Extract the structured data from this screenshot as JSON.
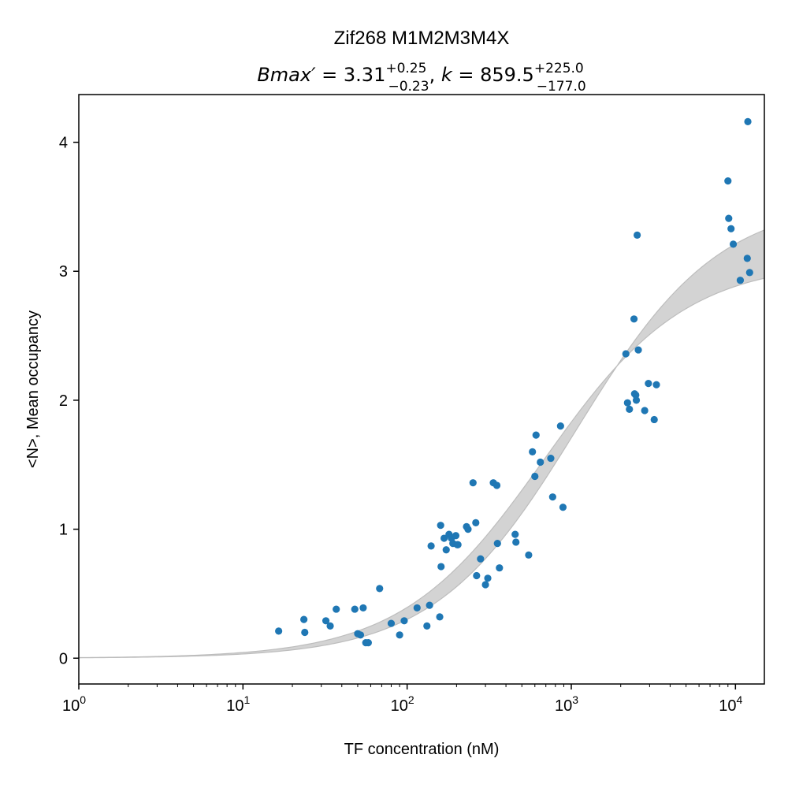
{
  "chart_data": {
    "type": "scatter",
    "title": "Zif268 M1M2M3M4X",
    "subtitle": {
      "bmax_label": "Bmax′",
      "bmax_value": "3.31",
      "bmax_plus": "+0.25",
      "bmax_minus": "−0.23",
      "k_label": "k",
      "k_value": "859.5",
      "k_plus": "+225.0",
      "k_minus": "−177.0"
    },
    "xlabel": "TF concentration (nM)",
    "ylabel": "<N>, Mean occupancy",
    "xscale": "log",
    "xlim": [
      1,
      15000
    ],
    "ylim": [
      -0.2,
      4.37
    ],
    "x_ticks": [
      {
        "value": 1,
        "base": "10",
        "exp": "0"
      },
      {
        "value": 10,
        "base": "10",
        "exp": "1"
      },
      {
        "value": 100,
        "base": "10",
        "exp": "2"
      },
      {
        "value": 1000,
        "base": "10",
        "exp": "3"
      },
      {
        "value": 10000,
        "base": "10",
        "exp": "4"
      }
    ],
    "y_ticks": [
      {
        "value": 0,
        "label": "0"
      },
      {
        "value": 1,
        "label": "1"
      },
      {
        "value": 2,
        "label": "2"
      },
      {
        "value": 3,
        "label": "3"
      },
      {
        "value": 4,
        "label": "4"
      }
    ],
    "grid": false,
    "band": {
      "model": "Bmax*x/(k+x)",
      "color": "#d3d3d3",
      "edge_color": "#bdbdbd",
      "lower": {
        "bmax": 3.08,
        "k": 682.5
      },
      "upper": {
        "bmax": 3.56,
        "k": 1084.5
      }
    },
    "series": [
      {
        "color": "#1f77b4",
        "x": [
          16.5,
          23.5,
          23.8,
          32,
          34,
          37,
          48,
          50,
          52,
          54,
          56,
          58,
          68,
          80,
          90,
          96,
          115,
          132,
          137,
          140,
          158,
          160,
          161,
          168,
          173,
          180,
          186,
          190,
          198,
          202,
          204,
          230,
          235,
          252,
          262,
          265,
          280,
          300,
          310,
          335,
          352,
          355,
          365,
          455,
          460,
          550,
          580,
          600,
          610,
          648,
          750,
          770,
          860,
          890,
          2150,
          2200,
          2260,
          2410,
          2430,
          2470,
          2490,
          2520,
          2560,
          2800,
          2950,
          3200,
          3300,
          9000,
          9100,
          9400,
          9700,
          10700,
          11800,
          11900,
          12200
        ],
        "y": [
          0.21,
          0.3,
          0.2,
          0.29,
          0.25,
          0.38,
          0.38,
          0.19,
          0.18,
          0.39,
          0.12,
          0.12,
          0.54,
          0.27,
          0.18,
          0.29,
          0.39,
          0.25,
          0.41,
          0.87,
          0.32,
          1.03,
          0.71,
          0.93,
          0.84,
          0.96,
          0.93,
          0.89,
          0.95,
          0.88,
          0.88,
          1.02,
          1.0,
          1.36,
          1.05,
          0.64,
          0.77,
          0.57,
          0.62,
          1.36,
          1.34,
          0.89,
          0.7,
          0.96,
          0.9,
          0.8,
          1.6,
          1.41,
          1.73,
          1.52,
          1.55,
          1.25,
          1.8,
          1.17,
          2.36,
          1.98,
          1.93,
          2.63,
          2.05,
          2.04,
          2.0,
          3.28,
          2.39,
          1.92,
          2.13,
          1.85,
          2.12,
          3.7,
          3.41,
          3.33,
          3.21,
          2.93,
          3.1,
          4.16,
          2.99
        ]
      }
    ]
  }
}
